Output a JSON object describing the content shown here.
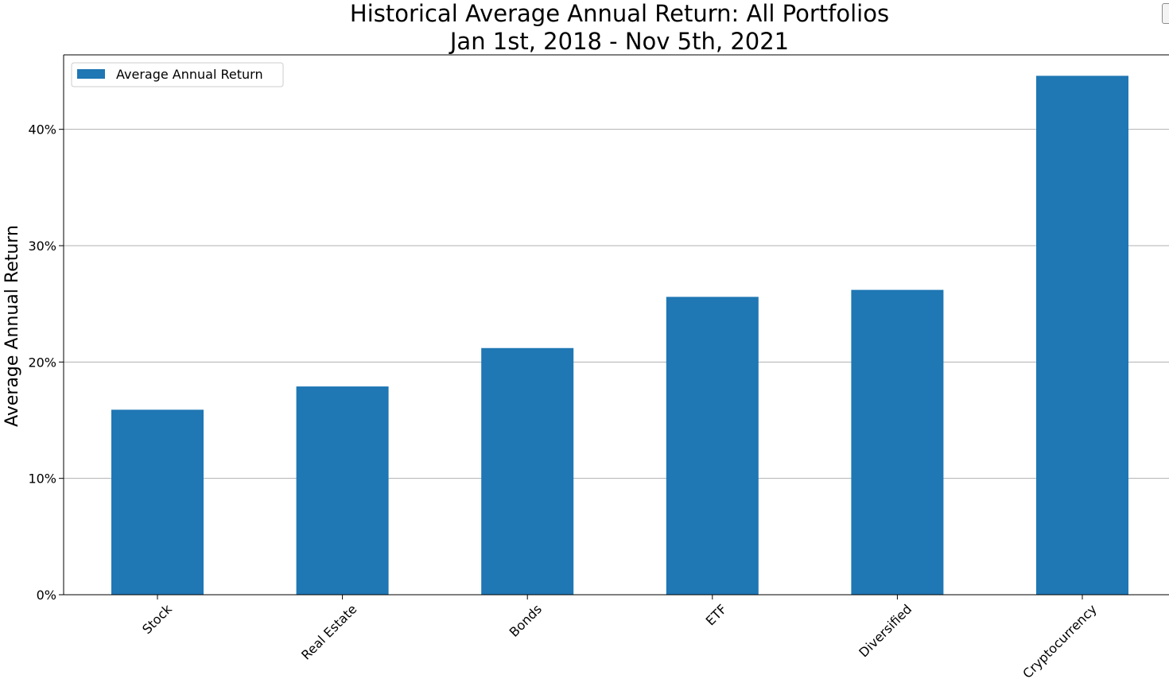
{
  "chart_data": {
    "type": "bar",
    "title": "Historical Average Annual Return: All Portfolios",
    "subtitle": "Jan 1st, 2018 - Nov 5th, 2021",
    "xlabel": "",
    "ylabel": "Average Annual Return",
    "categories": [
      "Stock",
      "Real Estate",
      "Bonds",
      "ETF",
      "Diversified",
      "Cryptocurrency"
    ],
    "series": [
      {
        "name": "Average Annual Return",
        "values": [
          15.9,
          17.9,
          21.2,
          25.6,
          26.2,
          44.6
        ]
      }
    ],
    "ylim": [
      0,
      46.4
    ],
    "y_ticks": [
      0,
      10,
      20,
      30,
      40
    ],
    "y_tick_labels": [
      "0%",
      "10%",
      "20%",
      "30%",
      "40%"
    ],
    "grid": "horizontal",
    "legend_position": "top-left",
    "bar_color": "#1f77b4"
  }
}
